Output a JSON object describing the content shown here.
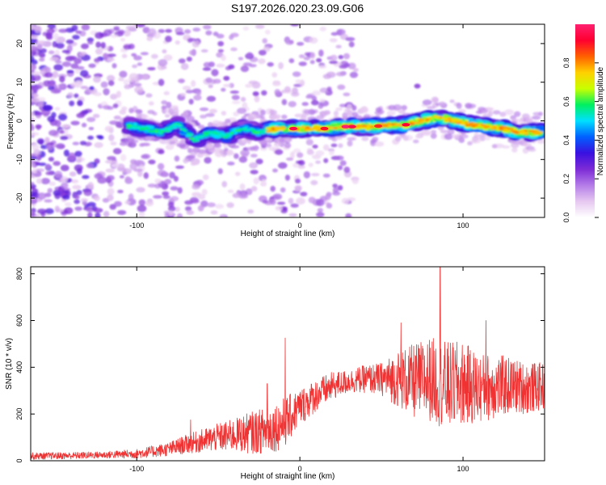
{
  "title": "S197.2026.020.23.09.G06",
  "colors": {
    "snr_line": "#f03232",
    "frame": "#000000",
    "colormap": [
      "#ffffff",
      "#e6c8f0",
      "#b47ce8",
      "#7d2bd6",
      "#3a10e0",
      "#0060ff",
      "#00e0ff",
      "#00f060",
      "#c8ff00",
      "#ffd000",
      "#ff6000",
      "#ff0030",
      "#ff2070"
    ]
  },
  "chart_data": [
    {
      "type": "heatmap",
      "name": "spectrogram",
      "xlabel": "Height of straight line (km)",
      "ylabel": "Frequency (Hz)",
      "xlim": [
        -165,
        150
      ],
      "ylim": [
        -25,
        25
      ],
      "xticks": [
        {
          "value": -100,
          "label": "-100"
        },
        {
          "value": 0,
          "label": "0"
        },
        {
          "value": 100,
          "label": "100"
        }
      ],
      "yticks": [
        {
          "value": 20,
          "label": "20"
        },
        {
          "value": 10,
          "label": "10"
        },
        {
          "value": 0,
          "label": "0"
        },
        {
          "value": -10,
          "label": "-10"
        },
        {
          "value": -20,
          "label": "-20"
        }
      ],
      "ridge": {
        "description_x": [
          -110,
          -95,
          -85,
          -75,
          -65,
          -55,
          -45,
          -35,
          -25,
          -15,
          -5,
          5,
          15,
          25,
          35,
          45,
          55,
          65,
          75,
          85,
          95,
          105,
          115,
          125,
          135,
          148
        ],
        "frequency_hz": [
          -1,
          -2,
          -3,
          -1,
          -5,
          -3,
          -4,
          -2,
          -3,
          -2,
          -2,
          -2,
          -2,
          -1.5,
          -1.5,
          -1.5,
          -1,
          -1,
          0,
          1,
          0,
          -1,
          -1.5,
          -2,
          -3,
          -3
        ]
      },
      "colorbar": {
        "label": "Normalized spectral amplitude",
        "range": [
          0,
          1
        ],
        "ticks": [
          {
            "value": 0.0,
            "label": "0.0"
          },
          {
            "value": 0.2,
            "label": "0.2"
          },
          {
            "value": 0.4,
            "label": "0.4"
          },
          {
            "value": 0.6,
            "label": "0.6"
          },
          {
            "value": 0.8,
            "label": "0.8"
          }
        ]
      }
    },
    {
      "type": "line",
      "name": "snr",
      "xlabel": "Height of straight line (km)",
      "ylabel": "SNR (10 * v/v)",
      "xlim": [
        -165,
        150
      ],
      "ylim": [
        0,
        830
      ],
      "xticks": [
        {
          "value": -100,
          "label": "-100"
        },
        {
          "value": 0,
          "label": "0"
        },
        {
          "value": 100,
          "label": "100"
        }
      ],
      "yticks": [
        {
          "value": 0,
          "label": "0"
        },
        {
          "value": 200,
          "label": "200"
        },
        {
          "value": 400,
          "label": "400"
        },
        {
          "value": 600,
          "label": "600"
        },
        {
          "value": 800,
          "label": "800"
        }
      ],
      "envelope": {
        "x": [
          -165,
          -140,
          -120,
          -100,
          -90,
          -80,
          -70,
          -60,
          -50,
          -40,
          -30,
          -20,
          -10,
          0,
          10,
          20,
          30,
          40,
          50,
          60,
          70,
          80,
          90,
          100,
          110,
          120,
          130,
          140,
          150
        ],
        "mean": [
          20,
          22,
          25,
          30,
          40,
          50,
          70,
          85,
          100,
          110,
          120,
          130,
          160,
          230,
          280,
          320,
          340,
          350,
          350,
          350,
          340,
          350,
          320,
          330,
          310,
          320,
          320,
          310,
          320
        ],
        "spread": [
          15,
          15,
          15,
          20,
          25,
          30,
          40,
          50,
          60,
          70,
          90,
          100,
          110,
          80,
          70,
          60,
          50,
          60,
          70,
          120,
          160,
          180,
          190,
          180,
          150,
          140,
          120,
          110,
          100
        ]
      },
      "peaks": [
        {
          "x": 86,
          "y": 830
        },
        {
          "x": -9,
          "y": 525
        },
        {
          "x": 62,
          "y": 590
        },
        {
          "x": 114,
          "y": 600
        },
        {
          "x": -67,
          "y": 175
        },
        {
          "x": -20,
          "y": 330
        }
      ]
    }
  ]
}
